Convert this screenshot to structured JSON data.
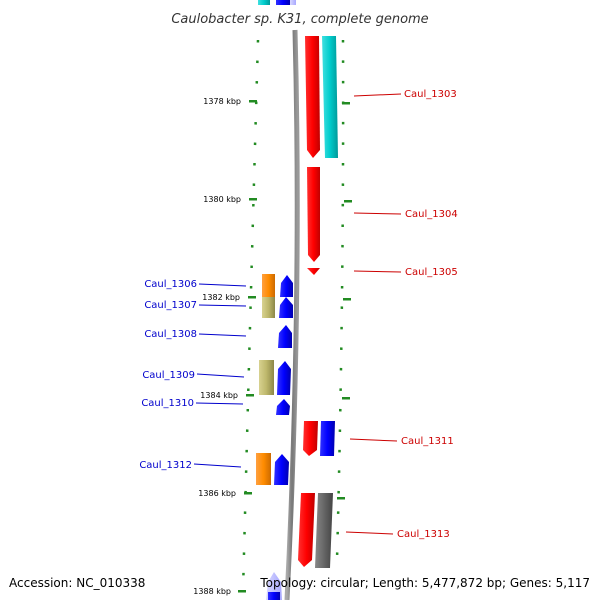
{
  "title": "Caulobacter sp. K31, complete genome",
  "footer": {
    "accession": "Accession: NC_010338",
    "topology": "Topology: circular; Length: 5,477,872 bp; Genes: 5,117"
  },
  "colors": {
    "backbone": "#808080",
    "tick": "#228b22",
    "red_gene": "#ff0000",
    "cyan_gene": "#00cccc",
    "blue_gene": "#0000ff",
    "orange_gene": "#ff8c00",
    "khaki_gene": "#bdb76b",
    "gray_gene": "#666666",
    "label_red": "#cc0000",
    "label_blue": "#0000cc"
  },
  "ticks": [
    {
      "label": "1378 kbp"
    },
    {
      "label": "1380 kbp"
    },
    {
      "label": "1382 kbp"
    },
    {
      "label": "1384 kbp"
    },
    {
      "label": "1386 kbp"
    },
    {
      "label": "1388 kbp"
    }
  ],
  "genes_right": [
    {
      "label": "Caul_1303"
    },
    {
      "label": "Caul_1304"
    },
    {
      "label": "Caul_1305"
    },
    {
      "label": "Caul_1311"
    },
    {
      "label": "Caul_1313"
    }
  ],
  "genes_left": [
    {
      "label": "Caul_1306"
    },
    {
      "label": "Caul_1307"
    },
    {
      "label": "Caul_1308"
    },
    {
      "label": "Caul_1309"
    },
    {
      "label": "Caul_1310"
    },
    {
      "label": "Caul_1312"
    }
  ]
}
